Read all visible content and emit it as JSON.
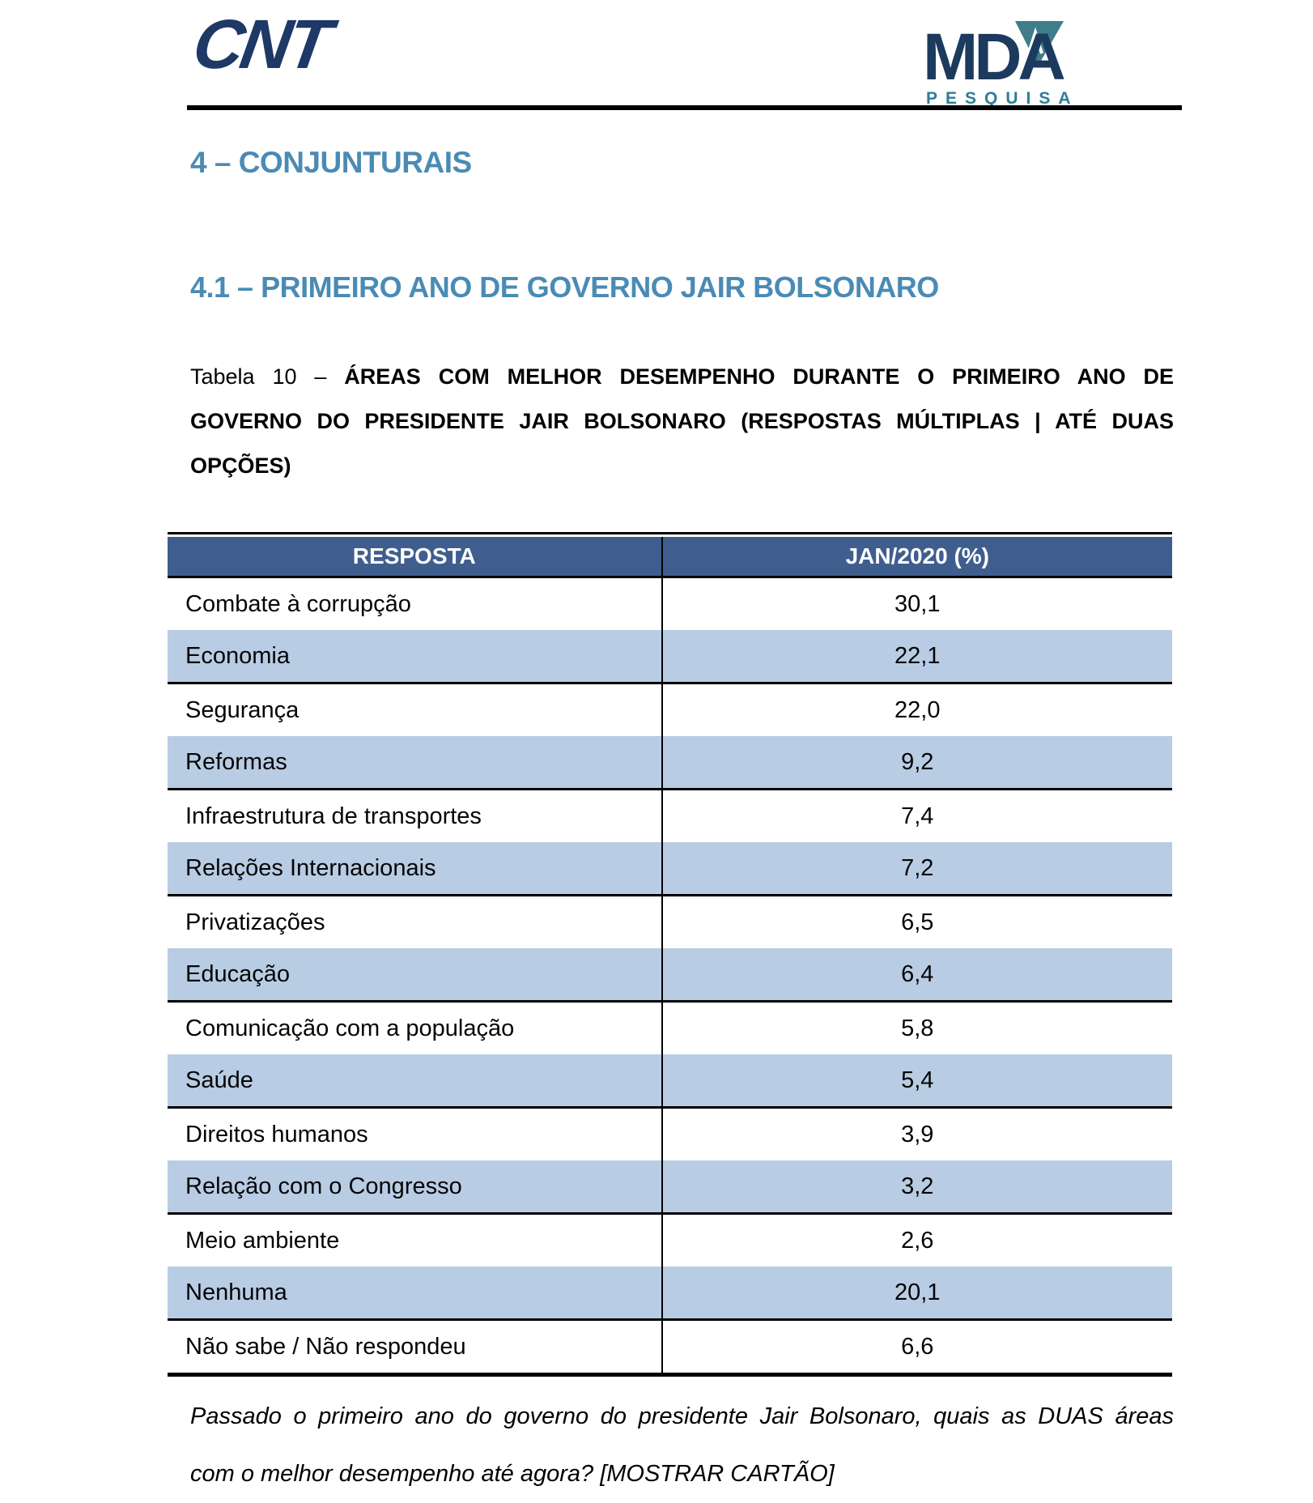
{
  "logos": {
    "cnt": "CNT",
    "mda": "MDA",
    "mda_sub": "PESQUISA"
  },
  "headings": {
    "section": "4 – CONJUNTURAIS",
    "subsection": "4.1 – PRIMEIRO ANO DE GOVERNO JAIR BOLSONARO"
  },
  "caption": {
    "prefix": "Tabela 10 – ",
    "line1": "ÁREAS COM MELHOR DESEMPENHO DURANTE O PRIMEIRO ANO DE",
    "line2": "GOVERNO DO PRESIDENTE JAIR BOLSONARO (RESPOSTAS MÚLTIPLAS | ATÉ DUAS",
    "line3": "OPÇÕES)"
  },
  "table": {
    "columns": [
      "RESPOSTA",
      "JAN/2020 (%)"
    ],
    "rows": [
      {
        "label": "Combate à corrupção",
        "value": "30,1"
      },
      {
        "label": "Economia",
        "value": "22,1"
      },
      {
        "label": "Segurança",
        "value": "22,0"
      },
      {
        "label": "Reformas",
        "value": "9,2"
      },
      {
        "label": "Infraestrutura de transportes",
        "value": "7,4"
      },
      {
        "label": "Relações Internacionais",
        "value": "7,2"
      },
      {
        "label": "Privatizações",
        "value": "6,5"
      },
      {
        "label": "Educação",
        "value": "6,4"
      },
      {
        "label": "Comunicação com a população",
        "value": "5,8"
      },
      {
        "label": "Saúde",
        "value": "5,4"
      },
      {
        "label": "Direitos humanos",
        "value": "3,9"
      },
      {
        "label": "Relação com o Congresso",
        "value": "3,2"
      },
      {
        "label": "Meio ambiente",
        "value": "2,6"
      },
      {
        "label": "Nenhuma",
        "value": "20,1"
      },
      {
        "label": "Não sabe / Não respondeu",
        "value": "6,6"
      }
    ]
  },
  "chart_data": {
    "type": "table",
    "title": "Tabela 10 – Áreas com melhor desempenho durante o primeiro ano de governo do presidente Jair Bolsonaro (respostas múltiplas | até duas opções)",
    "columns": [
      "RESPOSTA",
      "JAN/2020 (%)"
    ],
    "rows": [
      [
        "Combate à corrupção",
        30.1
      ],
      [
        "Economia",
        22.1
      ],
      [
        "Segurança",
        22.0
      ],
      [
        "Reformas",
        9.2
      ],
      [
        "Infraestrutura de transportes",
        7.4
      ],
      [
        "Relações Internacionais",
        7.2
      ],
      [
        "Privatizações",
        6.5
      ],
      [
        "Educação",
        6.4
      ],
      [
        "Comunicação com a população",
        5.8
      ],
      [
        "Saúde",
        5.4
      ],
      [
        "Direitos humanos",
        3.9
      ],
      [
        "Relação com o Congresso",
        3.2
      ],
      [
        "Meio ambiente",
        2.6
      ],
      [
        "Nenhuma",
        20.1
      ],
      [
        "Não sabe / Não respondeu",
        6.6
      ]
    ]
  },
  "footnote": {
    "line1": "Passado o primeiro ano do governo do presidente Jair Bolsonaro, quais as DUAS áreas",
    "line2": "com o melhor desempenho até agora? [MOSTRAR CARTÃO]"
  },
  "colors": {
    "header_bg": "#3F5E8E",
    "alt_row": "#B8CCE4",
    "heading": "#4A8BB5",
    "logo_navy": "#1F3966",
    "logo_teal": "#2E7E96",
    "logo_triangle": "#3E7D8A"
  }
}
